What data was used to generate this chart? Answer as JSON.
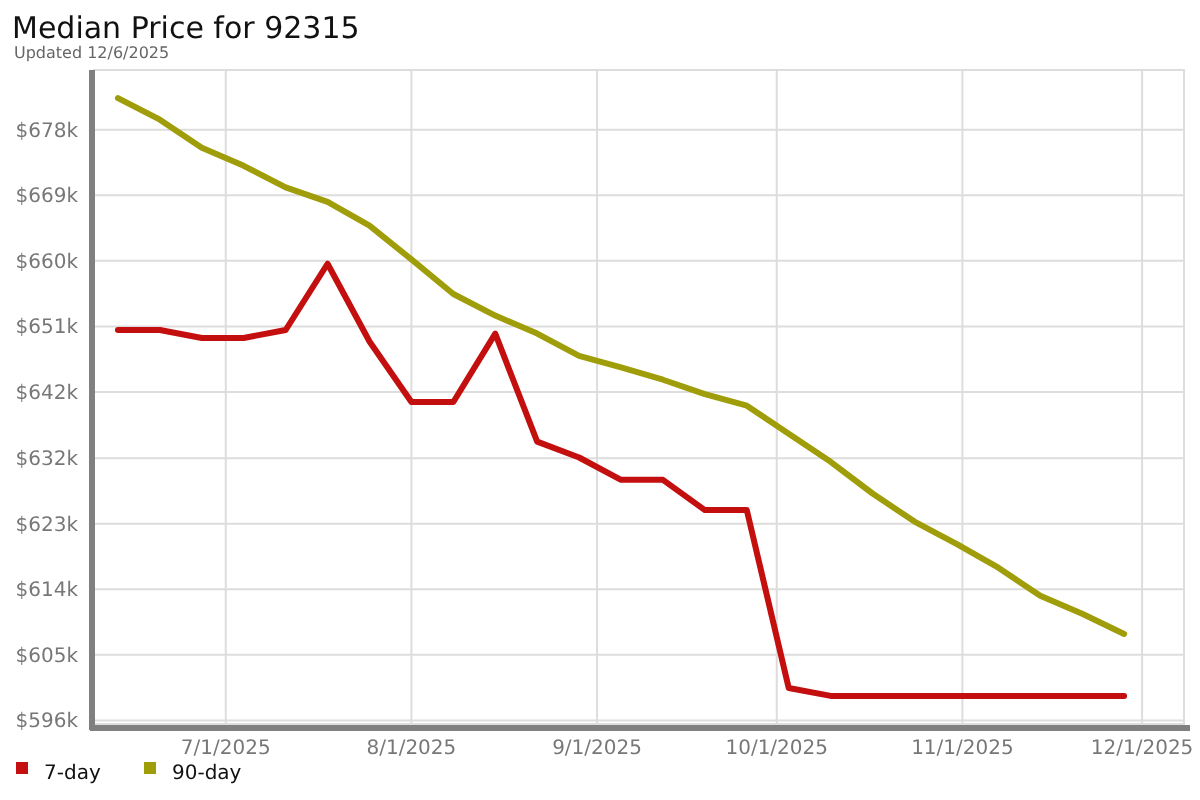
{
  "chart_data": {
    "type": "line",
    "title": "Median Price for 92315",
    "subtitle": "Updated 12/6/2025",
    "x": [
      "2025-06-13",
      "2025-06-20",
      "2025-06-27",
      "2025-07-04",
      "2025-07-11",
      "2025-07-18",
      "2025-07-25",
      "2025-08-01",
      "2025-08-08",
      "2025-08-15",
      "2025-08-22",
      "2025-08-29",
      "2025-09-05",
      "2025-09-12",
      "2025-09-19",
      "2025-09-26",
      "2025-10-03",
      "2025-10-10",
      "2025-10-17",
      "2025-10-24",
      "2025-10-31",
      "2025-11-07",
      "2025-11-14",
      "2025-11-21",
      "2025-11-28"
    ],
    "series": [
      {
        "name": "7-day",
        "color": "#c40f0f",
        "values": [
          650.2,
          650.2,
          649.1,
          649.1,
          650.2,
          659.4,
          648.6,
          640.2,
          640.2,
          649.7,
          634.7,
          632.5,
          629.4,
          629.4,
          625.2,
          625.2,
          600.5,
          599.4,
          599.4,
          599.4,
          599.4,
          599.4,
          599.4,
          599.4,
          599.4
        ]
      },
      {
        "name": "90-day",
        "color": "#a09d0a",
        "values": [
          682.4,
          679.4,
          675.5,
          673.0,
          670.0,
          668.0,
          664.7,
          660.0,
          655.2,
          652.2,
          649.7,
          646.6,
          645.0,
          643.3,
          641.3,
          639.7,
          635.8,
          631.9,
          627.5,
          623.6,
          620.5,
          617.2,
          613.3,
          610.8,
          608.0
        ]
      }
    ],
    "xlim": [
      "2025-06-09",
      "2025-12-08"
    ],
    "xticks": [
      {
        "value": "2025-07-01",
        "label": "7/1/2025"
      },
      {
        "value": "2025-08-01",
        "label": "8/1/2025"
      },
      {
        "value": "2025-09-01",
        "label": "9/1/2025"
      },
      {
        "value": "2025-10-01",
        "label": "10/1/2025"
      },
      {
        "value": "2025-11-01",
        "label": "11/1/2025"
      },
      {
        "value": "2025-12-01",
        "label": "12/1/2025"
      }
    ],
    "ylim": [
      595.5,
      686.3
    ],
    "yticks": [
      {
        "value": 596.0,
        "label": "$596k"
      },
      {
        "value": 605.1,
        "label": "$605k"
      },
      {
        "value": 614.2,
        "label": "$614k"
      },
      {
        "value": 623.3,
        "label": "$623k"
      },
      {
        "value": 632.4,
        "label": "$632k"
      },
      {
        "value": 641.6,
        "label": "$642k"
      },
      {
        "value": 650.7,
        "label": "$651k"
      },
      {
        "value": 659.8,
        "label": "$660k"
      },
      {
        "value": 668.9,
        "label": "$669k"
      },
      {
        "value": 678.0,
        "label": "$678k"
      }
    ],
    "grid": true,
    "legend": "bottom left",
    "marker": "none",
    "line_style": "solid"
  }
}
